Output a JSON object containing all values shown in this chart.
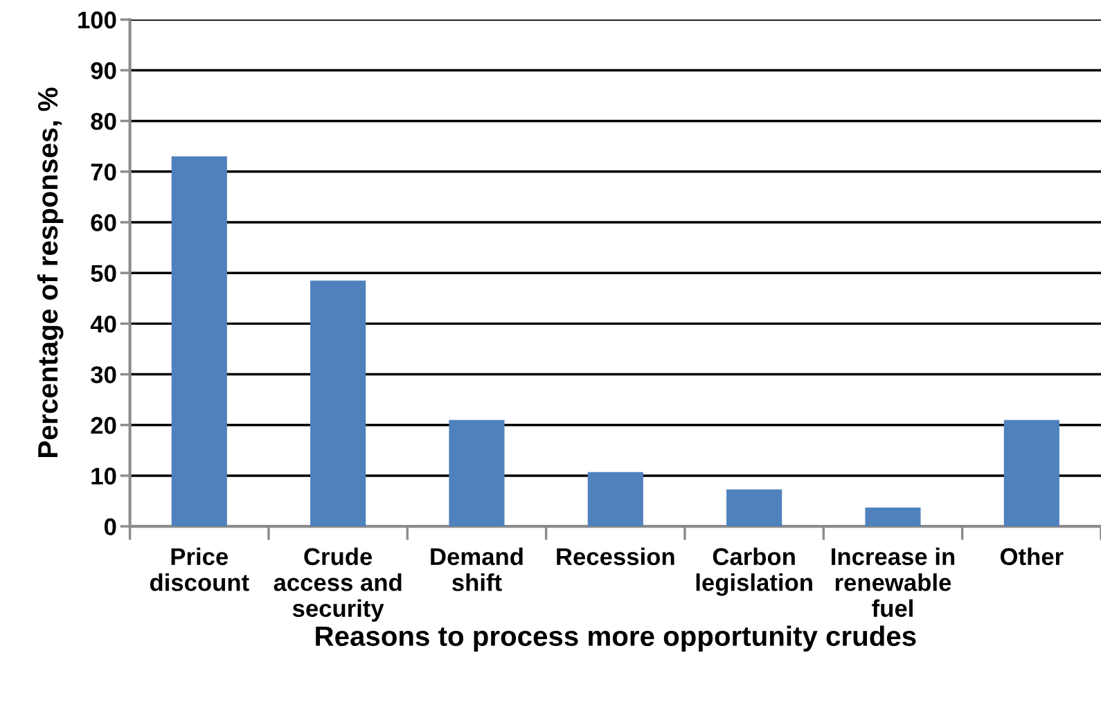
{
  "chart_data": {
    "type": "bar",
    "xlabel": "Reasons to process more opportunity crudes",
    "ylabel": "Percentage of responses, %",
    "categories": [
      "Price\ndiscount",
      "Crude\naccess and\nsecurity",
      "Demand\nshift",
      "Recession",
      "Carbon\nlegislation",
      "Increase in\nrenewable\nfuel",
      "Other"
    ],
    "values": [
      73,
      48.5,
      21,
      10.7,
      7.3,
      3.7,
      21
    ],
    "color": "#4f81bd",
    "ylim": [
      0,
      100
    ],
    "yticks": [
      0,
      10,
      20,
      30,
      40,
      50,
      60,
      70,
      80,
      90,
      100
    ],
    "grid": "y"
  }
}
